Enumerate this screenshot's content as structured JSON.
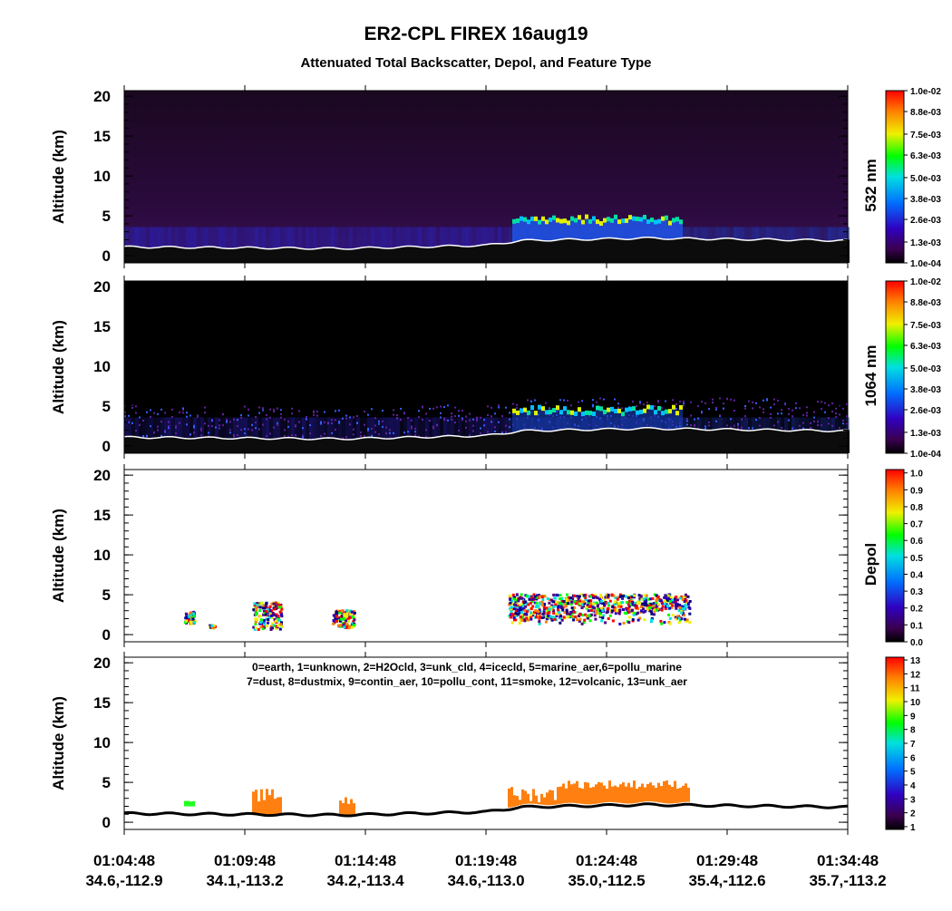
{
  "title": "ER2-CPL FIREX 16aug19",
  "subtitle": "Attenuated Total Backscatter, Depol, and Feature Type",
  "x_labels": [
    {
      "time": "01:04:48",
      "location": "34.6,-112.9"
    },
    {
      "time": "01:09:48",
      "location": "34.1,-113.2"
    },
    {
      "time": "01:14:48",
      "location": "34.2,-113.4"
    },
    {
      "time": "01:19:48",
      "location": "34.6,-113.0"
    },
    {
      "time": "01:24:48",
      "location": "35.0,-112.5"
    },
    {
      "time": "01:29:48",
      "location": "35.4,-112.6"
    },
    {
      "time": "01:34:48",
      "location": "35.7,-113.2"
    }
  ],
  "chart_data": [
    {
      "type": "backscatter",
      "ylabel": "Altitude (km)",
      "ylim": [
        -0.9,
        20.7
      ],
      "yticks": [
        0,
        5,
        10,
        15,
        20
      ],
      "colorbar": {
        "label": "532 nm",
        "lim": [
          0.0001,
          0.01
        ],
        "ticks": [
          {
            "value": 0.0001,
            "label": "1.0e-04"
          },
          {
            "value": 0.0013,
            "label": "1.3e-03"
          },
          {
            "value": 0.0026,
            "label": "2.6e-03"
          },
          {
            "value": 0.0038,
            "label": "3.8e-03"
          },
          {
            "value": 0.005,
            "label": "5.0e-03"
          },
          {
            "value": 0.0063,
            "label": "6.3e-03"
          },
          {
            "value": 0.0075,
            "label": "7.5e-03"
          },
          {
            "value": 0.0088,
            "label": "8.8e-03"
          },
          {
            "value": 0.01,
            "label": "1.0e-02"
          }
        ]
      }
    },
    {
      "type": "backscatter-noisy",
      "ylabel": "Altitude (km)",
      "ylim": [
        -0.9,
        20.7
      ],
      "yticks": [
        0,
        5,
        10,
        15,
        20
      ],
      "colorbar": {
        "label": "1064 nm",
        "lim": [
          0.0001,
          0.01
        ],
        "ticks": [
          {
            "value": 0.0001,
            "label": "1.0e-04"
          },
          {
            "value": 0.0013,
            "label": "1.3e-03"
          },
          {
            "value": 0.0026,
            "label": "2.6e-03"
          },
          {
            "value": 0.0038,
            "label": "3.8e-03"
          },
          {
            "value": 0.005,
            "label": "5.0e-03"
          },
          {
            "value": 0.0063,
            "label": "6.3e-03"
          },
          {
            "value": 0.0075,
            "label": "7.5e-03"
          },
          {
            "value": 0.0088,
            "label": "8.8e-03"
          },
          {
            "value": 0.01,
            "label": "1.0e-02"
          }
        ]
      }
    },
    {
      "type": "depol",
      "ylabel": "Altitude (km)",
      "ylim": [
        -0.9,
        20.7
      ],
      "yticks": [
        0,
        5,
        10,
        15,
        20
      ],
      "colorbar": {
        "label": "Depol",
        "lim": [
          0,
          1.02
        ],
        "ticks": [
          {
            "value": 0,
            "label": "0.0"
          },
          0.1,
          0.2,
          0.3,
          0.4,
          0.5,
          0.6,
          0.7,
          0.8,
          0.9,
          {
            "value": 1,
            "label": "1.0"
          }
        ]
      }
    },
    {
      "type": "feature",
      "ylabel": "Altitude (km)",
      "ylim": [
        -0.9,
        20.7
      ],
      "yticks": [
        0,
        5,
        10,
        15,
        20
      ],
      "annotations": [
        "0=earth, 1=unknown, 2=H2Ocld, 3=unk_cld, 4=icecld, 5=marine_aer,6=pollu_marine",
        "7=dust, 8=dustmix, 9=contin_aer, 10=pollu_cont, 11=smoke, 12=volcanic, 13=unk_aer"
      ],
      "colorbar": {
        "lim": [
          0.8,
          13.2
        ],
        "ticks": [
          1,
          2,
          3,
          4,
          5,
          6,
          7,
          8,
          9,
          10,
          11,
          12,
          13
        ]
      }
    }
  ]
}
